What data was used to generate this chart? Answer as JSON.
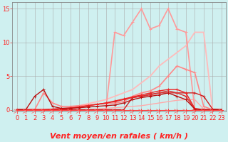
{
  "xlabel": "Vent moyen/en rafales ( km/h )",
  "bg_color": "#cff0f0",
  "grid_color": "#aaaaaa",
  "x": [
    0,
    1,
    2,
    3,
    4,
    5,
    6,
    7,
    8,
    9,
    10,
    11,
    12,
    13,
    14,
    15,
    16,
    17,
    18,
    19,
    20,
    21,
    22,
    23
  ],
  "lines": [
    {
      "y": [
        0,
        0,
        0,
        0,
        0,
        0,
        0,
        0,
        0,
        0.1,
        0.2,
        0.3,
        0.4,
        0.5,
        0.6,
        0.8,
        1.0,
        1.2,
        1.4,
        1.5,
        1.5,
        0.1,
        0.0,
        0.0
      ],
      "color": "#ffaaaa",
      "lw": 1.0,
      "marker": null
    },
    {
      "y": [
        0,
        0,
        0,
        0,
        0,
        0,
        0.3,
        0.6,
        0.9,
        1.2,
        1.5,
        2.0,
        2.5,
        3.0,
        4.0,
        5.0,
        6.5,
        7.5,
        8.5,
        9.5,
        11.5,
        11.5,
        0,
        0
      ],
      "color": "#ffbbbb",
      "lw": 1.3,
      "marker": null
    },
    {
      "y": [
        0,
        0,
        0,
        0,
        0,
        0,
        0,
        0,
        0,
        0,
        0,
        11.5,
        11.0,
        13.0,
        15.0,
        12.0,
        12.5,
        15.0,
        12.0,
        11.5,
        0.0,
        0.0,
        0.0,
        0.0
      ],
      "color": "#ff9999",
      "lw": 1.2,
      "marker": "+"
    },
    {
      "y": [
        0,
        0,
        0,
        2.5,
        1.0,
        0.5,
        0.5,
        0.6,
        0.7,
        0.8,
        0.9,
        1.0,
        1.2,
        2.0,
        2.5,
        2.8,
        3.5,
        5.0,
        6.5,
        6.0,
        5.5,
        0.5,
        0.0,
        0.0
      ],
      "color": "#ff8888",
      "lw": 1.2,
      "marker": "+"
    },
    {
      "y": [
        0,
        0,
        0,
        0,
        0,
        0,
        0,
        0,
        0,
        0,
        0,
        0,
        0,
        1.8,
        2.0,
        2.3,
        2.5,
        2.8,
        2.5,
        2.5,
        2.5,
        2.0,
        0.1,
        0.0
      ],
      "color": "#cc2222",
      "lw": 1.0,
      "marker": "+"
    },
    {
      "y": [
        0,
        0,
        0,
        0,
        0.1,
        0.2,
        0.3,
        0.4,
        0.6,
        0.8,
        1.0,
        1.2,
        1.5,
        1.8,
        2.0,
        2.2,
        2.5,
        2.5,
        2.5,
        2.0,
        0.1,
        0.0,
        0.0,
        0.0
      ],
      "color": "#dd3333",
      "lw": 1.0,
      "marker": "+"
    },
    {
      "y": [
        0,
        0,
        0,
        0,
        0,
        0.1,
        0.2,
        0.4,
        0.6,
        0.8,
        1.0,
        1.3,
        1.6,
        1.9,
        2.2,
        2.5,
        2.8,
        3.0,
        3.0,
        2.5,
        0.2,
        0.0,
        0.0,
        0.0
      ],
      "color": "#ee2222",
      "lw": 1.0,
      "marker": "+"
    },
    {
      "y": [
        0,
        0,
        2.0,
        3.0,
        0.5,
        0.2,
        0.2,
        0.3,
        0.4,
        0.5,
        0.6,
        0.7,
        1.0,
        1.5,
        1.8,
        2.0,
        2.2,
        2.5,
        2.0,
        1.5,
        0.1,
        0.0,
        0.0,
        0.0
      ],
      "color": "#bb1111",
      "lw": 1.0,
      "marker": "+"
    },
    {
      "y": [
        0,
        0,
        0,
        0,
        0,
        0,
        0,
        0,
        0,
        0,
        0,
        0,
        0,
        0,
        0,
        0,
        0,
        0,
        0,
        0,
        0,
        0,
        0,
        0
      ],
      "color": "#ff3333",
      "lw": 0.8,
      "marker": "+"
    }
  ],
  "ylim": [
    -0.3,
    16
  ],
  "yticks": [
    0,
    5,
    10,
    15
  ],
  "xticks": [
    0,
    1,
    2,
    3,
    4,
    5,
    6,
    7,
    8,
    9,
    10,
    11,
    12,
    13,
    14,
    15,
    16,
    17,
    18,
    19,
    20,
    21,
    22,
    23
  ],
  "xlabel_fontsize": 8,
  "tick_fontsize": 6,
  "axis_color": "#ff2222",
  "arrow_color": "#ff6666"
}
